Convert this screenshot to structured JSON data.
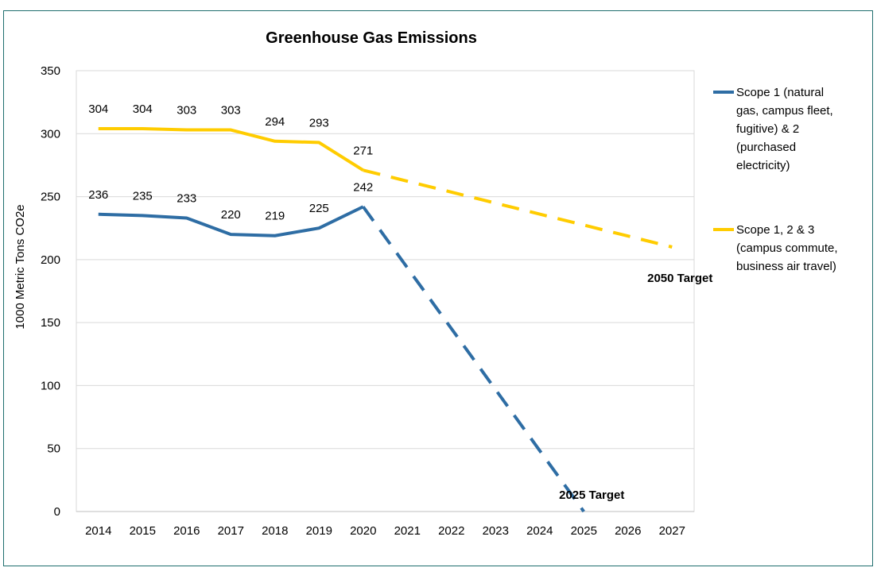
{
  "chart_data": {
    "type": "line",
    "title": "Greenhouse Gas Emissions",
    "ylabel": "1000 Metric Tons CO2e",
    "xlabel": "",
    "ylim": [
      0,
      350
    ],
    "yticks": [
      0,
      50,
      100,
      150,
      200,
      250,
      300,
      350
    ],
    "x": [
      2014,
      2015,
      2016,
      2017,
      2018,
      2019,
      2020,
      2021,
      2022,
      2023,
      2024,
      2025,
      2026,
      2027
    ],
    "grid": true,
    "legend_position": "right",
    "series": [
      {
        "name": "Scope 1 (natural gas, campus fleet, fugitive) & 2 (purchased electricity)",
        "legend_lines": [
          "Scope 1 (natural",
          "gas, campus fleet,",
          "fugitive) & 2",
          "(purchased",
          "electricity)"
        ],
        "color": "#2e6da4",
        "actual": [
          {
            "x": 2014,
            "y": 236,
            "label": "236"
          },
          {
            "x": 2015,
            "y": 235,
            "label": "235"
          },
          {
            "x": 2016,
            "y": 233,
            "label": "233"
          },
          {
            "x": 2017,
            "y": 220,
            "label": "220"
          },
          {
            "x": 2018,
            "y": 219,
            "label": "219"
          },
          {
            "x": 2019,
            "y": 225,
            "label": "225"
          },
          {
            "x": 2020,
            "y": 242,
            "label": "242"
          }
        ],
        "projection": [
          {
            "x": 2020,
            "y": 242
          },
          {
            "x": 2025,
            "y": 0
          }
        ]
      },
      {
        "name": "Scope 1, 2 & 3 (campus commute, business air travel)",
        "legend_lines": [
          "Scope 1, 2 & 3",
          "(campus commute,",
          "business air travel)"
        ],
        "color": "#ffcc00",
        "actual": [
          {
            "x": 2014,
            "y": 304,
            "label": "304"
          },
          {
            "x": 2015,
            "y": 304,
            "label": "304"
          },
          {
            "x": 2016,
            "y": 303,
            "label": "303"
          },
          {
            "x": 2017,
            "y": 303,
            "label": "303"
          },
          {
            "x": 2018,
            "y": 294,
            "label": "294"
          },
          {
            "x": 2019,
            "y": 293,
            "label": "293"
          },
          {
            "x": 2020,
            "y": 271,
            "label": "271"
          }
        ],
        "projection": [
          {
            "x": 2020,
            "y": 271
          },
          {
            "x": 2027,
            "y": 210
          }
        ]
      }
    ],
    "annotations": [
      {
        "text": "2050 Target",
        "anchor_series": 1
      },
      {
        "text": "2025 Target",
        "anchor_series": 0
      }
    ]
  }
}
